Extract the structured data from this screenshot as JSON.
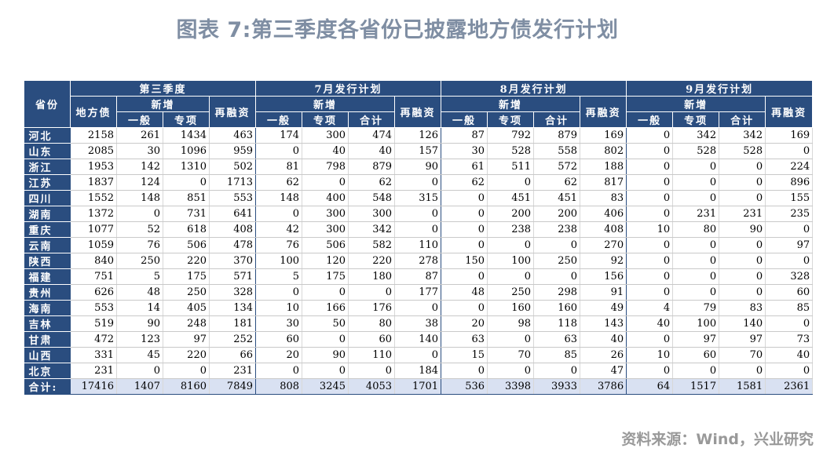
{
  "title": "图表 7:第三季度各省份已披露地方债发行计划",
  "source": "资料来源：Wind，兴业研究",
  "header": {
    "province": "省份",
    "q3": "第三季度",
    "jul": "7月发行计划",
    "aug": "8月发行计划",
    "sep": "9月发行计划",
    "local_debt": "地方债",
    "new_add": "新增",
    "refinance": "再融资",
    "general": "一般",
    "special": "专项",
    "subtotal": "合计"
  },
  "rows": [
    {
      "province": "河北",
      "values": [
        "2158",
        "261",
        "1434",
        "463",
        "174",
        "300",
        "474",
        "126",
        "87",
        "792",
        "879",
        "169",
        "0",
        "342",
        "342",
        "169"
      ]
    },
    {
      "province": "山东",
      "values": [
        "2085",
        "30",
        "1096",
        "959",
        "0",
        "40",
        "40",
        "157",
        "30",
        "528",
        "558",
        "802",
        "0",
        "528",
        "528",
        "0"
      ]
    },
    {
      "province": "浙江",
      "values": [
        "1953",
        "142",
        "1310",
        "502",
        "81",
        "798",
        "879",
        "90",
        "61",
        "511",
        "572",
        "188",
        "0",
        "0",
        "0",
        "224"
      ]
    },
    {
      "province": "江苏",
      "values": [
        "1837",
        "124",
        "0",
        "1713",
        "62",
        "0",
        "62",
        "0",
        "62",
        "0",
        "62",
        "817",
        "0",
        "0",
        "0",
        "896"
      ]
    },
    {
      "province": "四川",
      "values": [
        "1552",
        "148",
        "851",
        "553",
        "148",
        "400",
        "548",
        "315",
        "0",
        "451",
        "451",
        "83",
        "0",
        "0",
        "0",
        "155"
      ]
    },
    {
      "province": "湖南",
      "values": [
        "1372",
        "0",
        "731",
        "641",
        "0",
        "300",
        "300",
        "0",
        "0",
        "200",
        "200",
        "406",
        "0",
        "231",
        "231",
        "235"
      ]
    },
    {
      "province": "重庆",
      "values": [
        "1077",
        "52",
        "618",
        "408",
        "42",
        "300",
        "342",
        "0",
        "0",
        "238",
        "238",
        "408",
        "10",
        "80",
        "90",
        "0"
      ]
    },
    {
      "province": "云南",
      "values": [
        "1059",
        "76",
        "506",
        "478",
        "76",
        "506",
        "582",
        "110",
        "0",
        "0",
        "0",
        "270",
        "0",
        "0",
        "0",
        "97"
      ]
    },
    {
      "province": "陕西",
      "values": [
        "840",
        "250",
        "220",
        "370",
        "100",
        "120",
        "220",
        "278",
        "150",
        "100",
        "250",
        "92",
        "0",
        "0",
        "0",
        "0"
      ]
    },
    {
      "province": "福建",
      "values": [
        "751",
        "5",
        "175",
        "571",
        "5",
        "175",
        "180",
        "87",
        "0",
        "0",
        "0",
        "156",
        "0",
        "0",
        "0",
        "328"
      ]
    },
    {
      "province": "贵州",
      "values": [
        "626",
        "48",
        "250",
        "328",
        "0",
        "0",
        "0",
        "177",
        "48",
        "250",
        "298",
        "91",
        "0",
        "0",
        "0",
        "60"
      ]
    },
    {
      "province": "海南",
      "values": [
        "553",
        "14",
        "405",
        "134",
        "10",
        "166",
        "176",
        "0",
        "0",
        "160",
        "160",
        "49",
        "4",
        "79",
        "83",
        "85"
      ]
    },
    {
      "province": "吉林",
      "values": [
        "519",
        "90",
        "248",
        "181",
        "30",
        "50",
        "80",
        "38",
        "20",
        "98",
        "118",
        "143",
        "40",
        "100",
        "140",
        "0"
      ]
    },
    {
      "province": "甘肃",
      "values": [
        "472",
        "123",
        "97",
        "252",
        "60",
        "0",
        "60",
        "140",
        "63",
        "0",
        "63",
        "40",
        "0",
        "97",
        "97",
        "73"
      ]
    },
    {
      "province": "山西",
      "values": [
        "331",
        "45",
        "220",
        "66",
        "20",
        "90",
        "110",
        "0",
        "15",
        "70",
        "85",
        "26",
        "10",
        "60",
        "70",
        "40"
      ]
    },
    {
      "province": "北京",
      "values": [
        "231",
        "0",
        "0",
        "231",
        "0",
        "0",
        "0",
        "184",
        "0",
        "0",
        "0",
        "47",
        "0",
        "0",
        "0",
        "0"
      ]
    }
  ],
  "total": {
    "label": "合计:",
    "values": [
      "17416",
      "1407",
      "8160",
      "7849",
      "808",
      "3245",
      "4053",
      "1701",
      "536",
      "3398",
      "3933",
      "3786",
      "64",
      "1517",
      "1581",
      "2361"
    ]
  }
}
